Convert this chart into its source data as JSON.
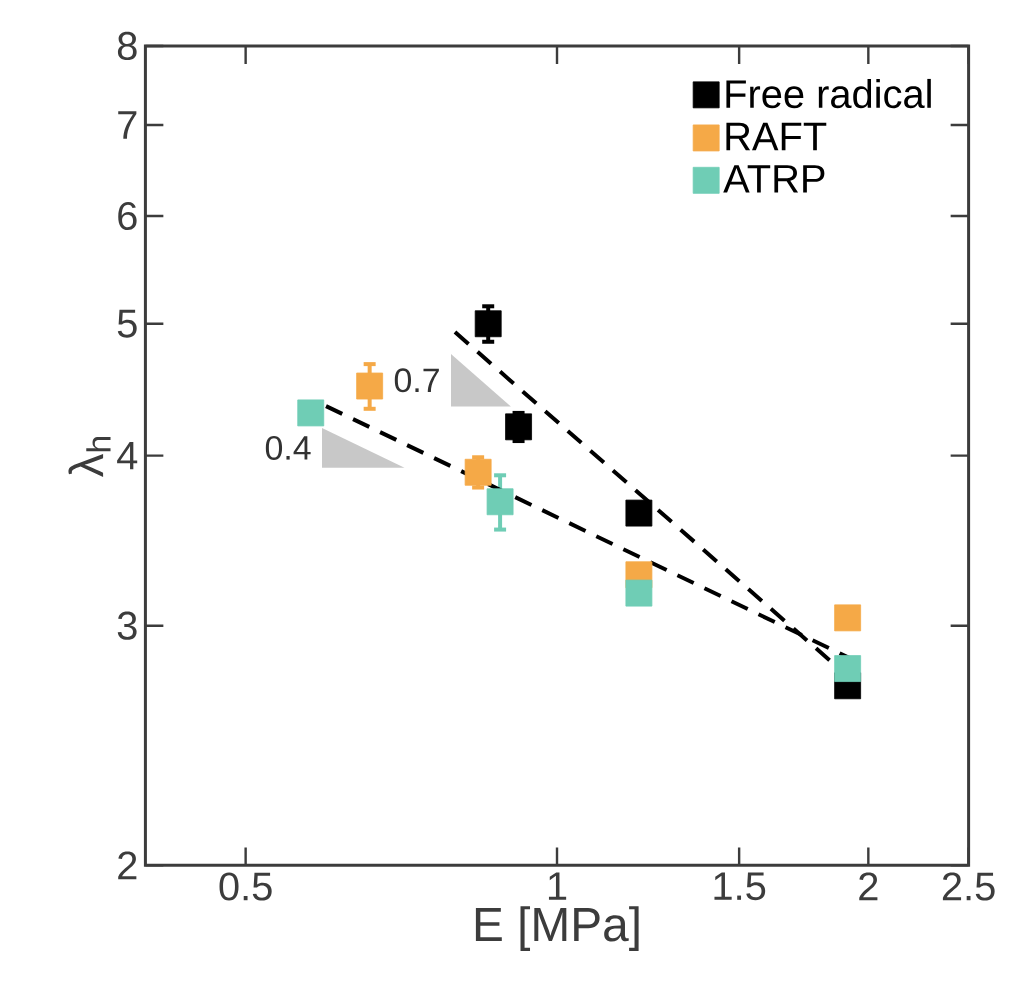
{
  "chart_data": {
    "type": "scatter",
    "xlabel": "E [MPa]",
    "ylabel": "λ$_{h}$",
    "log": "xy",
    "xlim": [
      0.4,
      2.5
    ],
    "ylim": [
      2,
      8
    ],
    "xticks": [
      0.5,
      1,
      1.5,
      2,
      2.5
    ],
    "yticks": [
      2,
      3,
      4,
      5,
      6,
      7,
      8
    ],
    "grid": false,
    "legend": "top right",
    "marker": "square",
    "series": [
      {
        "name": "Free radical",
        "color": "#000000",
        "x": [
          0.858,
          0.918,
          1.2,
          1.91
        ],
        "values": [
          5.0,
          4.2,
          3.63,
          2.71
        ],
        "errors": [
          0.15,
          0.1,
          null,
          null
        ]
      },
      {
        "name": "RAFT",
        "color": "#f5a947",
        "x": [
          0.659,
          0.839,
          1.2,
          1.91
        ],
        "values": [
          4.5,
          3.89,
          3.27,
          3.04
        ],
        "errors": [
          0.17,
          0.1,
          null,
          null
        ]
      },
      {
        "name": "ATRP",
        "color": "#6fcdb5",
        "x": [
          0.578,
          0.881,
          1.2,
          1.91
        ],
        "values": [
          4.3,
          3.7,
          3.17,
          2.79
        ],
        "errors": [
          null,
          0.17,
          null,
          null
        ]
      },
      {
        "type": "line",
        "color": "#000000",
        "line_style": "dashed",
        "marker": "none",
        "x": [
          0.797,
          1.884
        ],
        "values": [
          4.93,
          2.78
        ]
      },
      {
        "type": "line",
        "color": "#000000",
        "line_style": "dashed",
        "marker": "none",
        "x": [
          0.598,
          1.956
        ],
        "values": [
          4.35,
          2.82
        ]
      }
    ],
    "annotations": [
      "0.7",
      "0.4"
    ]
  }
}
